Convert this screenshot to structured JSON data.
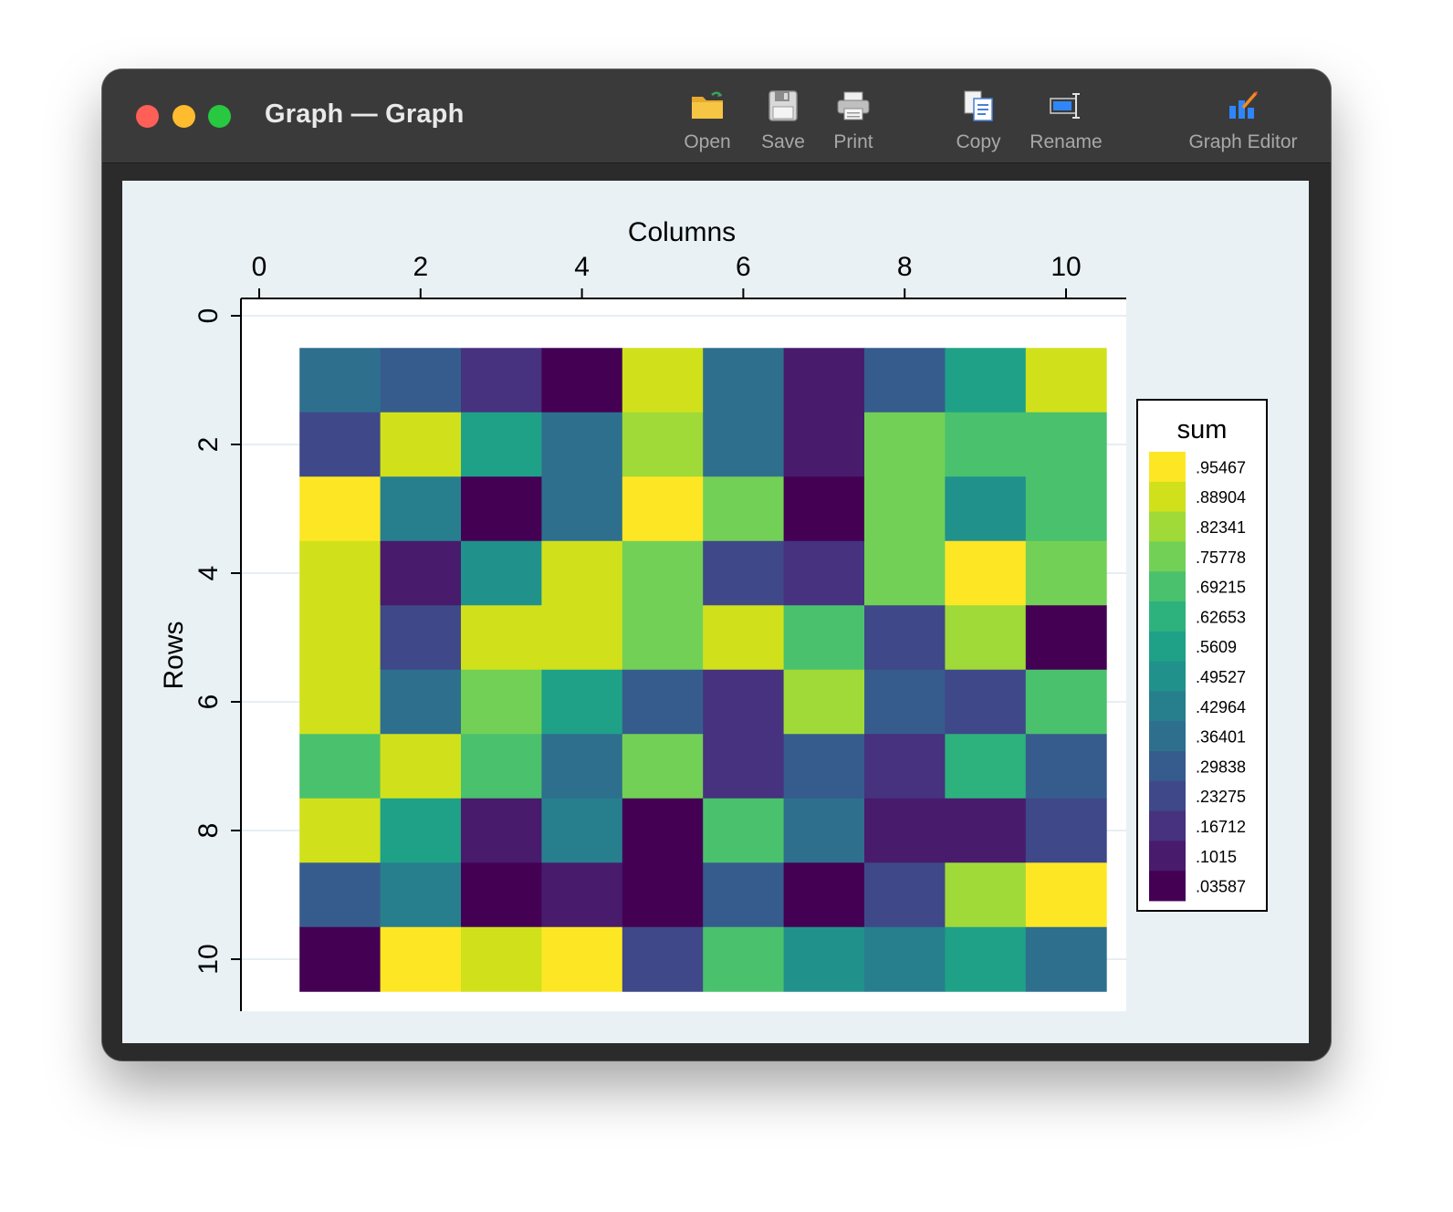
{
  "window": {
    "title": "Graph — Graph",
    "toolbar": {
      "open": "Open",
      "save": "Save",
      "print": "Print",
      "copy": "Copy",
      "rename": "Rename",
      "graph_editor": "Graph Editor"
    }
  },
  "chart_data": {
    "type": "heatmap",
    "title": "",
    "xlabel": "Columns",
    "ylabel": "Rows",
    "xlim": [
      0,
      10.5
    ],
    "ylim": [
      0,
      10.5
    ],
    "x_ticks": [
      "0",
      "2",
      "4",
      "6",
      "8",
      "10"
    ],
    "y_ticks": [
      "0",
      "2",
      "4",
      "6",
      "8",
      "10"
    ],
    "x_axis_position": "top",
    "y_axis_reversed": true,
    "grid": true,
    "legend": {
      "title": "sum",
      "placement": "right",
      "bins": [
        {
          "label": ".95467",
          "color": "#fde725"
        },
        {
          "label": ".88904",
          "color": "#d0e11c"
        },
        {
          "label": ".82341",
          "color": "#a0da39"
        },
        {
          "label": ".75778",
          "color": "#73d056"
        },
        {
          "label": ".69215",
          "color": "#4ac16d"
        },
        {
          "label": ".62653",
          "color": "#2db27d"
        },
        {
          "label": ".5609",
          "color": "#1fa187"
        },
        {
          "label": ".49527",
          "color": "#21918c"
        },
        {
          "label": ".42964",
          "color": "#277f8e"
        },
        {
          "label": ".36401",
          "color": "#2e6f8e"
        },
        {
          "label": ".29838",
          "color": "#365c8d"
        },
        {
          "label": ".23275",
          "color": "#3f4889"
        },
        {
          "label": ".16712",
          "color": "#46327e"
        },
        {
          "label": ".1015",
          "color": "#481b6d"
        },
        {
          "label": ".03587",
          "color": "#440154"
        }
      ]
    },
    "rows": [
      1,
      2,
      3,
      4,
      5,
      6,
      7,
      8,
      9,
      10
    ],
    "columns": [
      1,
      2,
      3,
      4,
      5,
      6,
      7,
      8,
      9,
      10
    ],
    "values": [
      [
        0.36401,
        0.29838,
        0.16712,
        0.03587,
        0.88904,
        0.36401,
        0.1015,
        0.29838,
        0.5609,
        0.88904
      ],
      [
        0.23275,
        0.88904,
        0.5609,
        0.36401,
        0.82341,
        0.36401,
        0.1015,
        0.75778,
        0.69215,
        0.69215
      ],
      [
        0.95467,
        0.42964,
        0.03587,
        0.36401,
        0.95467,
        0.75778,
        0.03587,
        0.75778,
        0.49527,
        0.69215
      ],
      [
        0.88904,
        0.1015,
        0.49527,
        0.88904,
        0.75778,
        0.23275,
        0.16712,
        0.75778,
        0.95467,
        0.75778
      ],
      [
        0.88904,
        0.23275,
        0.88904,
        0.88904,
        0.75778,
        0.88904,
        0.69215,
        0.23275,
        0.82341,
        0.03587
      ],
      [
        0.88904,
        0.36401,
        0.75778,
        0.5609,
        0.29838,
        0.16712,
        0.82341,
        0.29838,
        0.23275,
        0.69215
      ],
      [
        0.69215,
        0.88904,
        0.69215,
        0.36401,
        0.75778,
        0.16712,
        0.29838,
        0.16712,
        0.62653,
        0.29838
      ],
      [
        0.88904,
        0.5609,
        0.1015,
        0.42964,
        0.03587,
        0.69215,
        0.36401,
        0.1015,
        0.1015,
        0.23275
      ],
      [
        0.29838,
        0.42964,
        0.03587,
        0.1015,
        0.03587,
        0.29838,
        0.03587,
        0.23275,
        0.82341,
        0.95467
      ],
      [
        0.03587,
        0.95467,
        0.88904,
        0.95467,
        0.23275,
        0.69215,
        0.49527,
        0.42964,
        0.5609,
        0.36401
      ]
    ]
  }
}
